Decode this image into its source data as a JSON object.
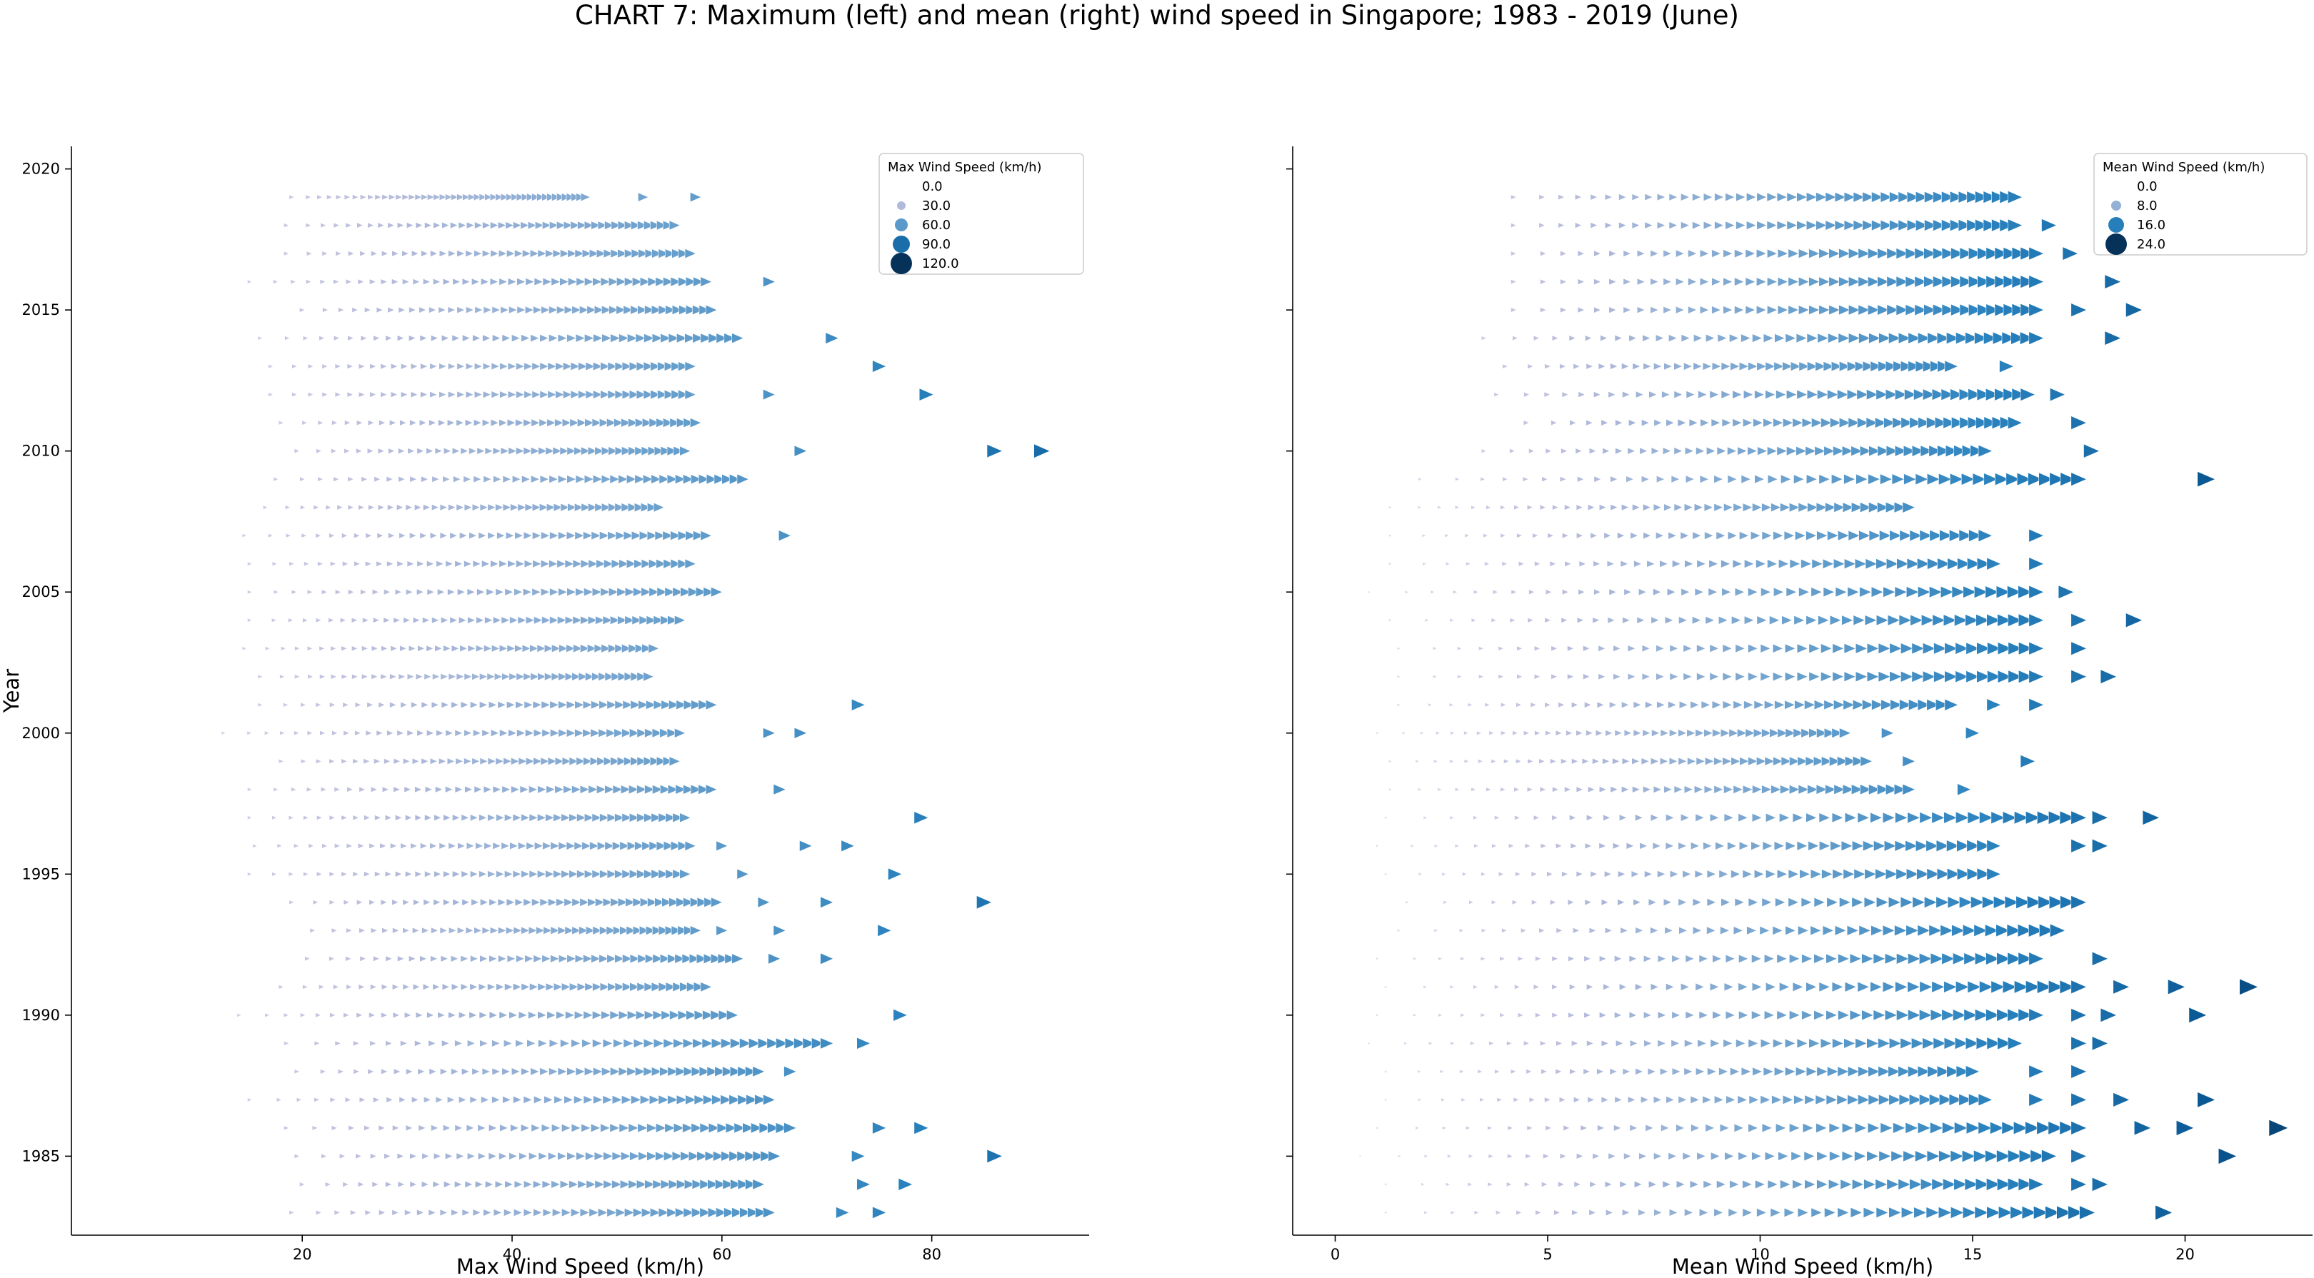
{
  "chart_data": {
    "title": "CHART 7: Maximum (left) and mean (right) wind speed in Singapore; 1983 - 2019 (June)",
    "ylabel": "Year",
    "yticks": [
      1985,
      1990,
      1995,
      2000,
      2005,
      2010,
      2015,
      2020
    ],
    "ylim": [
      1982.2,
      2020.8
    ],
    "marker": "triangle-right",
    "panels": [
      {
        "type": "scatter",
        "xlabel": "Max Wind Speed (km/h)",
        "xlim": [
          -2,
          95
        ],
        "xticks": [
          20,
          40,
          60,
          80
        ],
        "color_max": 120,
        "legend": {
          "title": "Max Wind Speed (km/h)",
          "entries": [
            "0.0",
            "30.0",
            "60.0",
            "90.0",
            "120.0"
          ],
          "values": [
            0,
            30,
            60,
            90,
            120
          ],
          "placement": "top-right"
        },
        "rows": [
          {
            "year": 1983,
            "min": 19,
            "max": 64.5,
            "outliers": [
              71.5,
              75
            ]
          },
          {
            "year": 1984,
            "min": 20,
            "max": 63.5,
            "outliers": [
              73.5,
              77.5
            ]
          },
          {
            "year": 1985,
            "min": 19.5,
            "max": 65,
            "outliers": [
              73,
              86
            ]
          },
          {
            "year": 1986,
            "min": 18.5,
            "max": 66.5,
            "outliers": [
              75,
              79
            ]
          },
          {
            "year": 1987,
            "min": 15,
            "max": 64.5,
            "outliers": []
          },
          {
            "year": 1988,
            "min": 19.5,
            "max": 63.5,
            "outliers": [
              66.5
            ]
          },
          {
            "year": 1989,
            "min": 18.5,
            "max": 70,
            "outliers": [
              73.5
            ]
          },
          {
            "year": 1990,
            "min": 14,
            "max": 61,
            "outliers": [
              77
            ]
          },
          {
            "year": 1991,
            "min": 18,
            "max": 58.5,
            "outliers": []
          },
          {
            "year": 1992,
            "min": 20.5,
            "max": 61.5,
            "outliers": [
              65,
              70
            ]
          },
          {
            "year": 1993,
            "min": 21,
            "max": 57.5,
            "outliers": [
              60,
              65.5,
              75.5
            ]
          },
          {
            "year": 1994,
            "min": 19,
            "max": 59.5,
            "outliers": [
              64,
              70,
              85
            ]
          },
          {
            "year": 1995,
            "min": 15,
            "max": 56.5,
            "outliers": [
              62,
              76.5
            ]
          },
          {
            "year": 1996,
            "min": 15.5,
            "max": 57,
            "outliers": [
              60,
              68,
              72
            ]
          },
          {
            "year": 1997,
            "min": 15,
            "max": 56.5,
            "outliers": [
              79
            ]
          },
          {
            "year": 1998,
            "min": 15,
            "max": 59,
            "outliers": [
              65.5
            ]
          },
          {
            "year": 1999,
            "min": 18,
            "max": 55.5,
            "outliers": []
          },
          {
            "year": 2000,
            "min": 12.5,
            "max": 56,
            "outliers": [
              64.5,
              67.5
            ]
          },
          {
            "year": 2001,
            "min": 16,
            "max": 59,
            "outliers": [
              73
            ]
          },
          {
            "year": 2002,
            "min": 16,
            "max": 53,
            "outliers": []
          },
          {
            "year": 2003,
            "min": 14.5,
            "max": 53.5,
            "outliers": []
          },
          {
            "year": 2004,
            "min": 15,
            "max": 56,
            "outliers": []
          },
          {
            "year": 2005,
            "min": 15,
            "max": 59.5,
            "outliers": []
          },
          {
            "year": 2006,
            "min": 15,
            "max": 57,
            "outliers": []
          },
          {
            "year": 2007,
            "min": 14.5,
            "max": 58.5,
            "outliers": [
              66
            ]
          },
          {
            "year": 2008,
            "min": 16.5,
            "max": 54,
            "outliers": []
          },
          {
            "year": 2009,
            "min": 17.5,
            "max": 62,
            "outliers": []
          },
          {
            "year": 2010,
            "min": 19.5,
            "max": 56.5,
            "outliers": [
              67.5,
              86,
              90.5
            ]
          },
          {
            "year": 2011,
            "min": 18,
            "max": 57.5,
            "outliers": []
          },
          {
            "year": 2012,
            "min": 17,
            "max": 57,
            "outliers": [
              64.5,
              79.5
            ]
          },
          {
            "year": 2013,
            "min": 17,
            "max": 57,
            "outliers": [
              75
            ]
          },
          {
            "year": 2014,
            "min": 16,
            "max": 61.5,
            "outliers": [
              70.5
            ]
          },
          {
            "year": 2015,
            "min": 20,
            "max": 59,
            "outliers": []
          },
          {
            "year": 2016,
            "min": 15,
            "max": 58.5,
            "outliers": [
              64.5
            ]
          },
          {
            "year": 2017,
            "min": 18.5,
            "max": 57,
            "outliers": []
          },
          {
            "year": 2018,
            "min": 18.5,
            "max": 55.5,
            "outliers": []
          },
          {
            "year": 2019,
            "min": 19,
            "max": 47,
            "outliers": [
              52.5,
              57.5
            ]
          }
        ]
      },
      {
        "type": "scatter",
        "xlabel": "Mean Wind Speed (km/h)",
        "xlim": [
          -1,
          23
        ],
        "xticks": [
          0,
          5,
          10,
          15,
          20
        ],
        "color_max": 24,
        "legend": {
          "title": "Mean Wind Speed (km/h)",
          "entries": [
            "0.0",
            "8.0",
            "16.0",
            "24.0"
          ],
          "values": [
            0,
            8,
            16,
            24
          ],
          "placement": "top-right"
        },
        "rows": [
          {
            "year": 1983,
            "min": 1.2,
            "max": 17.7,
            "outliers": [
              19.5
            ]
          },
          {
            "year": 1984,
            "min": 1.2,
            "max": 16.5,
            "outliers": [
              17.5,
              18
            ]
          },
          {
            "year": 1985,
            "min": 0.6,
            "max": 16.8,
            "outliers": [
              17.5,
              21
            ]
          },
          {
            "year": 1986,
            "min": 1,
            "max": 17.5,
            "outliers": [
              19,
              20,
              22.2
            ]
          },
          {
            "year": 1987,
            "min": 1.2,
            "max": 15.3,
            "outliers": [
              16.5,
              17.5,
              18.5,
              20.5
            ]
          },
          {
            "year": 1988,
            "min": 1.2,
            "max": 15,
            "outliers": [
              16.5,
              17.5
            ]
          },
          {
            "year": 1989,
            "min": 0.8,
            "max": 16,
            "outliers": [
              17.5,
              18
            ]
          },
          {
            "year": 1990,
            "min": 1,
            "max": 16.5,
            "outliers": [
              17.5,
              18.2,
              20.3
            ]
          },
          {
            "year": 1991,
            "min": 1.2,
            "max": 17.5,
            "outliers": [
              18.5,
              19.8,
              21.5
            ]
          },
          {
            "year": 1992,
            "min": 1,
            "max": 16.5,
            "outliers": [
              18
            ]
          },
          {
            "year": 1993,
            "min": 1.5,
            "max": 17,
            "outliers": []
          },
          {
            "year": 1994,
            "min": 1.7,
            "max": 17.5,
            "outliers": []
          },
          {
            "year": 1995,
            "min": 1.2,
            "max": 15.5,
            "outliers": []
          },
          {
            "year": 1996,
            "min": 1,
            "max": 15.5,
            "outliers": [
              17.5,
              18
            ]
          },
          {
            "year": 1997,
            "min": 1.2,
            "max": 17.5,
            "outliers": [
              18,
              19.2
            ]
          },
          {
            "year": 1998,
            "min": 1.3,
            "max": 13.5,
            "outliers": [
              14.8
            ]
          },
          {
            "year": 1999,
            "min": 1.3,
            "max": 12.5,
            "outliers": [
              13.5,
              16.3
            ]
          },
          {
            "year": 2000,
            "min": 1,
            "max": 12,
            "outliers": [
              13,
              15
            ]
          },
          {
            "year": 2001,
            "min": 1.5,
            "max": 14.5,
            "outliers": [
              15.5,
              16.5
            ]
          },
          {
            "year": 2002,
            "min": 1.5,
            "max": 16.5,
            "outliers": [
              17.5,
              18.2
            ]
          },
          {
            "year": 2003,
            "min": 1.5,
            "max": 16.5,
            "outliers": [
              17.5
            ]
          },
          {
            "year": 2004,
            "min": 1.3,
            "max": 16.5,
            "outliers": [
              17.5,
              18.8
            ]
          },
          {
            "year": 2005,
            "min": 0.8,
            "max": 16.5,
            "outliers": [
              17.2
            ]
          },
          {
            "year": 2006,
            "min": 1.3,
            "max": 15.5,
            "outliers": [
              16.5
            ]
          },
          {
            "year": 2007,
            "min": 1.3,
            "max": 15.3,
            "outliers": [
              16.5
            ]
          },
          {
            "year": 2008,
            "min": 1.3,
            "max": 13.5,
            "outliers": []
          },
          {
            "year": 2009,
            "min": 2,
            "max": 17.5,
            "outliers": [
              20.5
            ]
          },
          {
            "year": 2010,
            "min": 3.5,
            "max": 15.3,
            "outliers": [
              17.8
            ]
          },
          {
            "year": 2011,
            "min": 4.5,
            "max": 16,
            "outliers": [
              17.5
            ]
          },
          {
            "year": 2012,
            "min": 3.8,
            "max": 16.3,
            "outliers": [
              17
            ]
          },
          {
            "year": 2013,
            "min": 4,
            "max": 14.5,
            "outliers": [
              15.8
            ]
          },
          {
            "year": 2014,
            "min": 3.5,
            "max": 16.5,
            "outliers": [
              18.3
            ]
          },
          {
            "year": 2015,
            "min": 4.2,
            "max": 16.5,
            "outliers": [
              17.5,
              18.8
            ]
          },
          {
            "year": 2016,
            "min": 4.2,
            "max": 16.5,
            "outliers": [
              18.3
            ]
          },
          {
            "year": 2017,
            "min": 4.2,
            "max": 16.5,
            "outliers": [
              17.3
            ]
          },
          {
            "year": 2018,
            "min": 4.2,
            "max": 16,
            "outliers": [
              16.8
            ]
          },
          {
            "year": 2019,
            "min": 4.2,
            "max": 16,
            "outliers": []
          }
        ]
      }
    ]
  }
}
